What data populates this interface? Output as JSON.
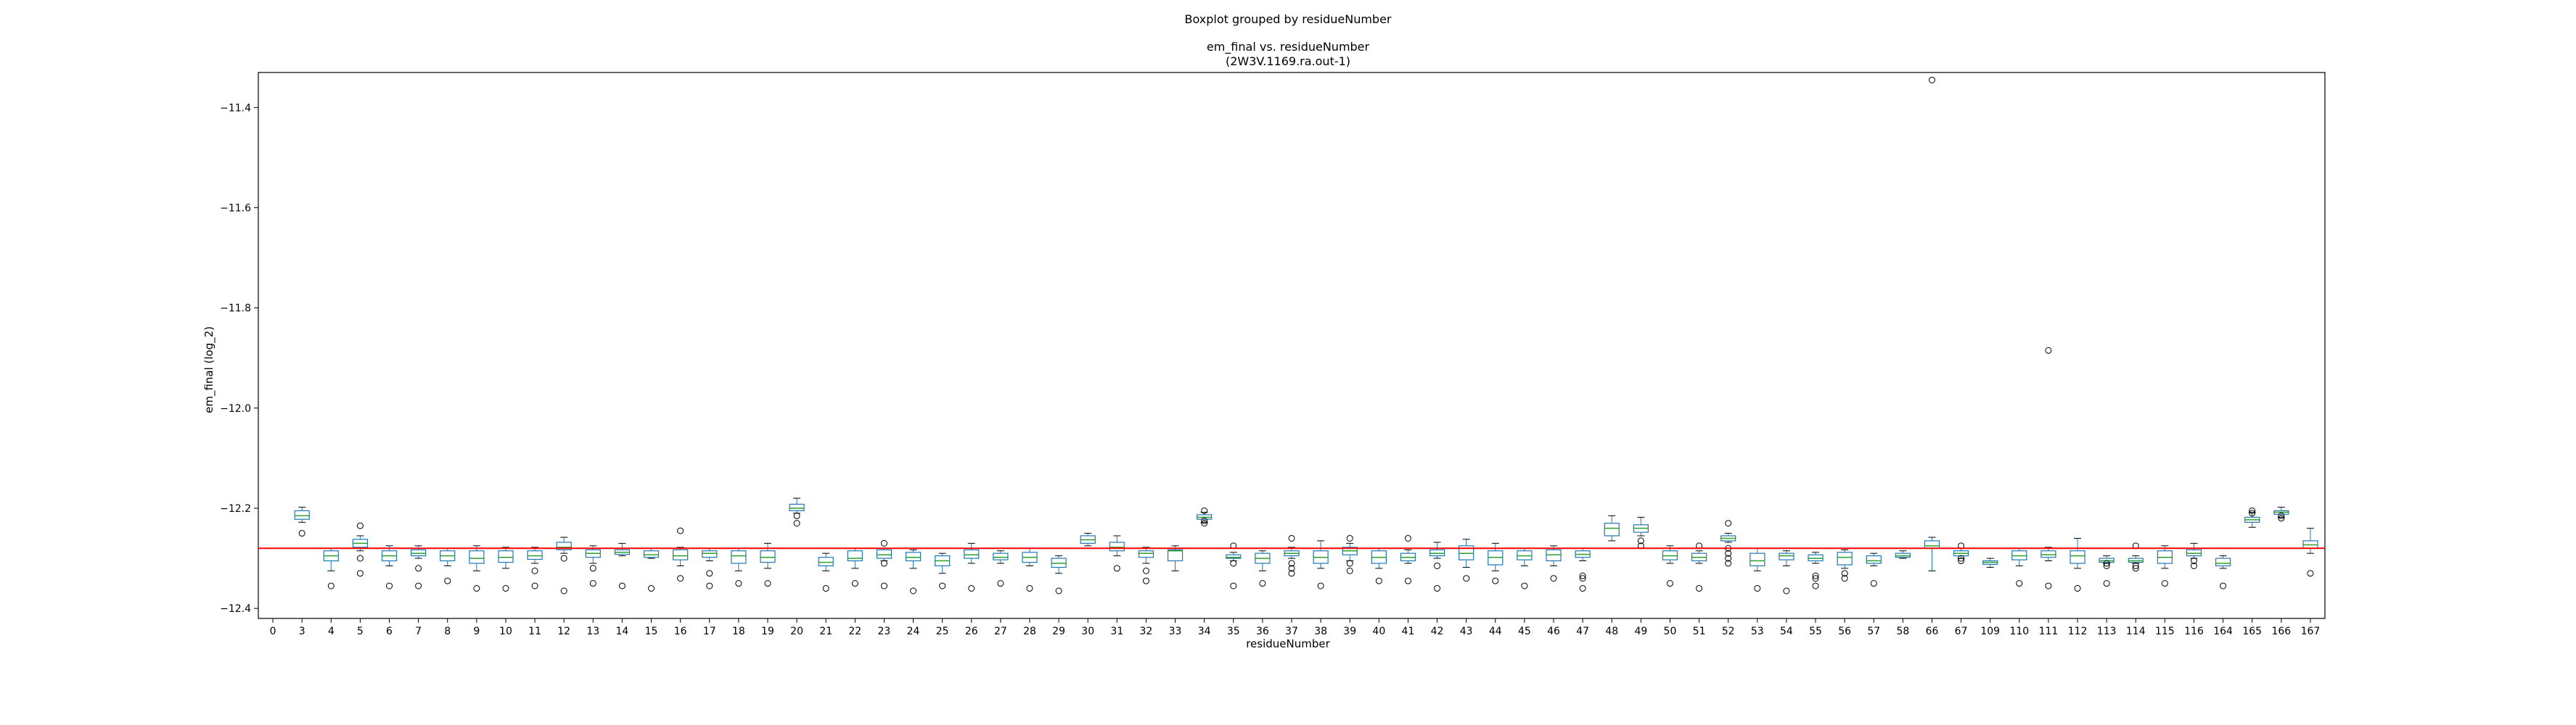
{
  "suptitle": "Boxplot grouped by residueNumber",
  "title_line1": "em_final vs. residueNumber",
  "title_line2": "(2W3V.1169.ra.out-1)",
  "colors": {
    "box": "#1f77b4",
    "median": "#2ca02c",
    "reference_line": "#ff0000",
    "axes": "#000000"
  },
  "chart_data": {
    "type": "box",
    "xlabel": "residueNumber",
    "ylabel": "em_final (log_2)",
    "ylim": [
      -12.42,
      -11.33
    ],
    "yticks": [
      -12.4,
      -12.2,
      -12.0,
      -11.8,
      -11.6,
      -11.4
    ],
    "ytick_labels": [
      "−12.4",
      "−12.2",
      "−12.0",
      "−11.8",
      "−11.6",
      "−11.4"
    ],
    "grid": false,
    "reference_line_y": -12.28,
    "categories": [
      "0",
      "3",
      "4",
      "5",
      "6",
      "7",
      "8",
      "9",
      "10",
      "11",
      "12",
      "13",
      "14",
      "15",
      "16",
      "17",
      "18",
      "19",
      "20",
      "21",
      "22",
      "23",
      "24",
      "25",
      "26",
      "27",
      "28",
      "29",
      "30",
      "31",
      "32",
      "33",
      "34",
      "35",
      "36",
      "37",
      "38",
      "39",
      "40",
      "41",
      "42",
      "43",
      "44",
      "45",
      "46",
      "47",
      "48",
      "49",
      "50",
      "51",
      "52",
      "53",
      "54",
      "55",
      "56",
      "57",
      "58",
      "66",
      "67",
      "109",
      "110",
      "111",
      "112",
      "113",
      "114",
      "115",
      "116",
      "164",
      "165",
      "166",
      "167"
    ],
    "boxes": [
      null,
      {
        "wlo": -12.228,
        "q1": -12.222,
        "med": -12.215,
        "q3": -12.205,
        "whi": -12.198,
        "fliers": [
          -12.25
        ]
      },
      {
        "wlo": -12.325,
        "q1": -12.305,
        "med": -12.295,
        "q3": -12.285,
        "whi": -12.28,
        "fliers": [
          -12.355
        ]
      },
      {
        "wlo": -12.285,
        "q1": -12.278,
        "med": -12.27,
        "q3": -12.262,
        "whi": -12.255,
        "fliers": [
          -12.235,
          -12.3,
          -12.33
        ]
      },
      {
        "wlo": -12.315,
        "q1": -12.305,
        "med": -12.295,
        "q3": -12.285,
        "whi": -12.275,
        "fliers": [
          -12.355
        ]
      },
      {
        "wlo": -12.3,
        "q1": -12.295,
        "med": -12.29,
        "q3": -12.283,
        "whi": -12.275,
        "fliers": [
          -12.32,
          -12.355
        ]
      },
      {
        "wlo": -12.315,
        "q1": -12.305,
        "med": -12.295,
        "q3": -12.285,
        "whi": -12.28,
        "fliers": [
          -12.345
        ]
      },
      {
        "wlo": -12.325,
        "q1": -12.31,
        "med": -12.3,
        "q3": -12.285,
        "whi": -12.275,
        "fliers": [
          -12.36
        ]
      },
      {
        "wlo": -12.32,
        "q1": -12.308,
        "med": -12.298,
        "q3": -12.285,
        "whi": -12.278,
        "fliers": [
          -12.36
        ]
      },
      {
        "wlo": -12.31,
        "q1": -12.302,
        "med": -12.295,
        "q3": -12.285,
        "whi": -12.278,
        "fliers": [
          -12.325,
          -12.355
        ]
      },
      {
        "wlo": -12.29,
        "q1": -12.283,
        "med": -12.278,
        "q3": -12.268,
        "whi": -12.258,
        "fliers": [
          -12.3,
          -12.365
        ]
      },
      {
        "wlo": -12.31,
        "q1": -12.298,
        "med": -12.29,
        "q3": -12.283,
        "whi": -12.275,
        "fliers": [
          -12.32,
          -12.35
        ]
      },
      {
        "wlo": -12.295,
        "q1": -12.292,
        "med": -12.288,
        "q3": -12.283,
        "whi": -12.27,
        "fliers": [
          -12.355
        ]
      },
      {
        "wlo": -12.3,
        "q1": -12.298,
        "med": -12.293,
        "q3": -12.285,
        "whi": -12.28,
        "fliers": [
          -12.36
        ]
      },
      {
        "wlo": -12.315,
        "q1": -12.303,
        "med": -12.295,
        "q3": -12.283,
        "whi": -12.278,
        "fliers": [
          -12.245,
          -12.34
        ]
      },
      {
        "wlo": -12.305,
        "q1": -12.298,
        "med": -12.29,
        "q3": -12.285,
        "whi": -12.28,
        "fliers": [
          -12.33,
          -12.355
        ]
      },
      {
        "wlo": -12.325,
        "q1": -12.31,
        "med": -12.295,
        "q3": -12.285,
        "whi": -12.28,
        "fliers": [
          -12.35
        ]
      },
      {
        "wlo": -12.32,
        "q1": -12.308,
        "med": -12.298,
        "q3": -12.285,
        "whi": -12.27,
        "fliers": [
          -12.35
        ]
      },
      {
        "wlo": -12.21,
        "q1": -12.205,
        "med": -12.2,
        "q3": -12.192,
        "whi": -12.18,
        "fliers": [
          -12.215,
          -12.23
        ]
      },
      {
        "wlo": -12.325,
        "q1": -12.315,
        "med": -12.308,
        "q3": -12.298,
        "whi": -12.29,
        "fliers": [
          -12.36
        ]
      },
      {
        "wlo": -12.32,
        "q1": -12.305,
        "med": -12.3,
        "q3": -12.285,
        "whi": -12.28,
        "fliers": [
          -12.35
        ]
      },
      {
        "wlo": -12.305,
        "q1": -12.3,
        "med": -12.293,
        "q3": -12.283,
        "whi": -12.28,
        "fliers": [
          -12.27,
          -12.31,
          -12.355
        ]
      },
      {
        "wlo": -12.32,
        "q1": -12.305,
        "med": -12.298,
        "q3": -12.288,
        "whi": -12.283,
        "fliers": [
          -12.365
        ]
      },
      {
        "wlo": -12.33,
        "q1": -12.315,
        "med": -12.305,
        "q3": -12.295,
        "whi": -12.29,
        "fliers": [
          -12.355
        ]
      },
      {
        "wlo": -12.31,
        "q1": -12.3,
        "med": -12.293,
        "q3": -12.283,
        "whi": -12.27,
        "fliers": [
          -12.36
        ]
      },
      {
        "wlo": -12.31,
        "q1": -12.303,
        "med": -12.298,
        "q3": -12.29,
        "whi": -12.285,
        "fliers": [
          -12.35
        ]
      },
      {
        "wlo": -12.315,
        "q1": -12.308,
        "med": -12.298,
        "q3": -12.288,
        "whi": -12.28,
        "fliers": [
          -12.36
        ]
      },
      {
        "wlo": -12.33,
        "q1": -12.318,
        "med": -12.31,
        "q3": -12.3,
        "whi": -12.295,
        "fliers": [
          -12.365
        ]
      },
      {
        "wlo": -12.275,
        "q1": -12.27,
        "med": -12.263,
        "q3": -12.255,
        "whi": -12.25,
        "fliers": []
      },
      {
        "wlo": -12.295,
        "q1": -12.285,
        "med": -12.278,
        "q3": -12.268,
        "whi": -12.255,
        "fliers": [
          -12.32
        ]
      },
      {
        "wlo": -12.31,
        "q1": -12.298,
        "med": -12.29,
        "q3": -12.285,
        "whi": -12.278,
        "fliers": [
          -12.325,
          -12.345
        ]
      },
      {
        "wlo": -12.325,
        "q1": -12.305,
        "med": -12.285,
        "q3": -12.283,
        "whi": -12.275,
        "fliers": []
      },
      {
        "wlo": -12.228,
        "q1": -12.222,
        "med": -12.218,
        "q3": -12.213,
        "whi": -12.208,
        "fliers": [
          -12.205,
          -12.225,
          -12.23
        ]
      },
      {
        "wlo": -12.305,
        "q1": -12.3,
        "med": -12.298,
        "q3": -12.293,
        "whi": -12.288,
        "fliers": [
          -12.275,
          -12.31,
          -12.355
        ]
      },
      {
        "wlo": -12.325,
        "q1": -12.31,
        "med": -12.3,
        "q3": -12.29,
        "whi": -12.285,
        "fliers": [
          -12.35
        ]
      },
      {
        "wlo": -12.3,
        "q1": -12.295,
        "med": -12.29,
        "q3": -12.285,
        "whi": -12.278,
        "fliers": [
          -12.26,
          -12.31,
          -12.32,
          -12.33
        ]
      },
      {
        "wlo": -12.32,
        "q1": -12.31,
        "med": -12.298,
        "q3": -12.285,
        "whi": -12.265,
        "fliers": [
          -12.355
        ]
      },
      {
        "wlo": -12.305,
        "q1": -12.293,
        "med": -12.285,
        "q3": -12.278,
        "whi": -12.27,
        "fliers": [
          -12.26,
          -12.31,
          -12.325
        ]
      },
      {
        "wlo": -12.32,
        "q1": -12.31,
        "med": -12.298,
        "q3": -12.285,
        "whi": -12.28,
        "fliers": [
          -12.345
        ]
      },
      {
        "wlo": -12.31,
        "q1": -12.305,
        "med": -12.298,
        "q3": -12.29,
        "whi": -12.283,
        "fliers": [
          -12.26,
          -12.345
        ]
      },
      {
        "wlo": -12.3,
        "q1": -12.295,
        "med": -12.29,
        "q3": -12.283,
        "whi": -12.268,
        "fliers": [
          -12.315,
          -12.36
        ]
      },
      {
        "wlo": -12.318,
        "q1": -12.303,
        "med": -12.29,
        "q3": -12.275,
        "whi": -12.262,
        "fliers": [
          -12.34
        ]
      },
      {
        "wlo": -12.325,
        "q1": -12.313,
        "med": -12.298,
        "q3": -12.285,
        "whi": -12.27,
        "fliers": [
          -12.345
        ]
      },
      {
        "wlo": -12.315,
        "q1": -12.303,
        "med": -12.295,
        "q3": -12.285,
        "whi": -12.28,
        "fliers": [
          -12.355
        ]
      },
      {
        "wlo": -12.315,
        "q1": -12.305,
        "med": -12.293,
        "q3": -12.283,
        "whi": -12.275,
        "fliers": [
          -12.34
        ]
      },
      {
        "wlo": -12.305,
        "q1": -12.298,
        "med": -12.292,
        "q3": -12.285,
        "whi": -12.28,
        "fliers": [
          -12.335,
          -12.34,
          -12.36
        ]
      },
      {
        "wlo": -12.265,
        "q1": -12.255,
        "med": -12.24,
        "q3": -12.23,
        "whi": -12.215,
        "fliers": []
      },
      {
        "wlo": -12.255,
        "q1": -12.248,
        "med": -12.24,
        "q3": -12.233,
        "whi": -12.218,
        "fliers": [
          -12.265,
          -12.275
        ]
      },
      {
        "wlo": -12.31,
        "q1": -12.303,
        "med": -12.295,
        "q3": -12.285,
        "whi": -12.275,
        "fliers": [
          -12.35
        ]
      },
      {
        "wlo": -12.31,
        "q1": -12.305,
        "med": -12.298,
        "q3": -12.29,
        "whi": -12.285,
        "fliers": [
          -12.275,
          -12.36
        ]
      },
      {
        "wlo": -12.268,
        "q1": -12.265,
        "med": -12.26,
        "q3": -12.255,
        "whi": -12.25,
        "fliers": [
          -12.23,
          -12.28,
          -12.29,
          -12.3,
          -12.31
        ]
      },
      {
        "wlo": -12.325,
        "q1": -12.315,
        "med": -12.305,
        "q3": -12.29,
        "whi": -12.28,
        "fliers": [
          -12.36
        ]
      },
      {
        "wlo": -12.315,
        "q1": -12.303,
        "med": -12.295,
        "q3": -12.29,
        "whi": -12.285,
        "fliers": [
          -12.365
        ]
      },
      {
        "wlo": -12.31,
        "q1": -12.305,
        "med": -12.3,
        "q3": -12.293,
        "whi": -12.288,
        "fliers": [
          -12.335,
          -12.34,
          -12.355
        ]
      },
      {
        "wlo": -12.32,
        "q1": -12.313,
        "med": -12.298,
        "q3": -12.288,
        "whi": -12.283,
        "fliers": [
          -12.33,
          -12.34
        ]
      },
      {
        "wlo": -12.315,
        "q1": -12.31,
        "med": -12.305,
        "q3": -12.295,
        "whi": -12.29,
        "fliers": [
          -12.35
        ]
      },
      {
        "wlo": -12.3,
        "q1": -12.298,
        "med": -12.295,
        "q3": -12.29,
        "whi": -12.285,
        "fliers": []
      },
      {
        "wlo": -12.325,
        "q1": -12.28,
        "med": -12.275,
        "q3": -12.265,
        "whi": -12.258,
        "fliers": [
          -11.345
        ]
      },
      {
        "wlo": -12.3,
        "q1": -12.295,
        "med": -12.29,
        "q3": -12.285,
        "whi": -12.28,
        "fliers": [
          -12.275,
          -12.3,
          -12.305
        ]
      },
      {
        "wlo": -12.318,
        "q1": -12.312,
        "med": -12.308,
        "q3": -12.305,
        "whi": -12.3,
        "fliers": []
      },
      {
        "wlo": -12.315,
        "q1": -12.303,
        "med": -12.295,
        "q3": -12.285,
        "whi": -12.28,
        "fliers": [
          -12.35
        ]
      },
      {
        "wlo": -12.305,
        "q1": -12.298,
        "med": -12.293,
        "q3": -12.285,
        "whi": -12.278,
        "fliers": [
          -11.885,
          -12.355
        ]
      },
      {
        "wlo": -12.32,
        "q1": -12.31,
        "med": -12.295,
        "q3": -12.285,
        "whi": -12.26,
        "fliers": [
          -12.36
        ]
      },
      {
        "wlo": -12.31,
        "q1": -12.308,
        "med": -12.305,
        "q3": -12.3,
        "whi": -12.295,
        "fliers": [
          -12.31,
          -12.315,
          -12.35
        ]
      },
      {
        "wlo": -12.31,
        "q1": -12.308,
        "med": -12.305,
        "q3": -12.3,
        "whi": -12.295,
        "fliers": [
          -12.275,
          -12.315,
          -12.32
        ]
      },
      {
        "wlo": -12.32,
        "q1": -12.31,
        "med": -12.298,
        "q3": -12.285,
        "whi": -12.275,
        "fliers": [
          -12.35
        ]
      },
      {
        "wlo": -12.3,
        "q1": -12.295,
        "med": -12.29,
        "q3": -12.283,
        "whi": -12.27,
        "fliers": [
          -12.305,
          -12.315
        ]
      },
      {
        "wlo": -12.32,
        "q1": -12.315,
        "med": -12.31,
        "q3": -12.3,
        "whi": -12.295,
        "fliers": [
          -12.355
        ]
      },
      {
        "wlo": -12.238,
        "q1": -12.228,
        "med": -12.223,
        "q3": -12.218,
        "whi": -12.208,
        "fliers": [
          -12.205,
          -12.21
        ]
      },
      {
        "wlo": -12.218,
        "q1": -12.212,
        "med": -12.208,
        "q3": -12.205,
        "whi": -12.198,
        "fliers": [
          -12.215,
          -12.22
        ]
      },
      {
        "wlo": -12.29,
        "q1": -12.28,
        "med": -12.273,
        "q3": -12.265,
        "whi": -12.24,
        "fliers": [
          -12.33
        ]
      }
    ]
  }
}
